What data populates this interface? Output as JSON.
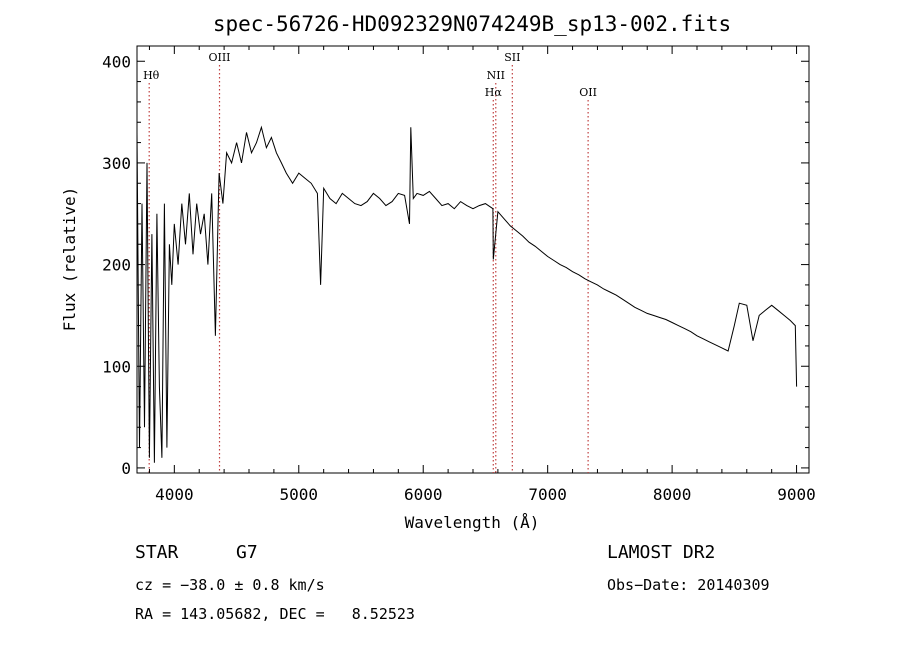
{
  "chart_data": {
    "type": "line",
    "title": "spec-56726-HD092329N074249B_sp13-002.fits",
    "xlabel": "Wavelength (Å)",
    "ylabel": "Flux (relative)",
    "xlim": [
      3700,
      9100
    ],
    "ylim": [
      -5,
      415
    ],
    "x_ticks": [
      4000,
      5000,
      6000,
      7000,
      8000,
      9000
    ],
    "y_ticks": [
      0,
      100,
      200,
      300,
      400
    ],
    "grid": false,
    "series": [
      {
        "x": [
          3700,
          3720,
          3740,
          3760,
          3780,
          3800,
          3820,
          3840,
          3860,
          3880,
          3900,
          3920,
          3940,
          3960,
          3980,
          4000,
          4030,
          4060,
          4090,
          4120,
          4150,
          4180,
          4210,
          4240,
          4270,
          4300,
          4330,
          4360,
          4390,
          4420,
          4460,
          4500,
          4540,
          4580,
          4620,
          4660,
          4700,
          4740,
          4780,
          4820,
          4860,
          4900,
          4950,
          5000,
          5050,
          5100,
          5150,
          5175,
          5200,
          5250,
          5300,
          5350,
          5400,
          5450,
          5500,
          5550,
          5600,
          5650,
          5700,
          5750,
          5800,
          5850,
          5890,
          5900,
          5920,
          5950,
          6000,
          6050,
          6100,
          6150,
          6200,
          6250,
          6300,
          6350,
          6400,
          6450,
          6500,
          6560,
          6563,
          6600,
          6650,
          6700,
          6750,
          6800,
          6850,
          6900,
          6950,
          7000,
          7050,
          7100,
          7150,
          7200,
          7250,
          7300,
          7350,
          7400,
          7450,
          7500,
          7550,
          7600,
          7650,
          7700,
          7750,
          7800,
          7850,
          7900,
          7950,
          8000,
          8050,
          8100,
          8150,
          8200,
          8250,
          8300,
          8350,
          8400,
          8450,
          8500,
          8540,
          8600,
          8650,
          8700,
          8750,
          8800,
          8850,
          8900,
          8950,
          8990,
          9000
        ],
        "y": [
          330,
          20,
          260,
          40,
          300,
          10,
          230,
          5,
          250,
          80,
          10,
          260,
          20,
          220,
          180,
          240,
          200,
          260,
          220,
          270,
          210,
          260,
          230,
          250,
          200,
          270,
          130,
          290,
          260,
          310,
          300,
          320,
          300,
          330,
          310,
          320,
          335,
          315,
          325,
          310,
          300,
          290,
          280,
          290,
          285,
          280,
          270,
          180,
          275,
          265,
          260,
          270,
          265,
          260,
          258,
          262,
          270,
          265,
          258,
          262,
          270,
          268,
          240,
          335,
          265,
          270,
          268,
          272,
          265,
          258,
          260,
          255,
          262,
          258,
          255,
          258,
          260,
          255,
          205,
          252,
          245,
          238,
          233,
          228,
          222,
          218,
          213,
          208,
          204,
          200,
          197,
          193,
          190,
          186,
          183,
          180,
          176,
          173,
          170,
          166,
          162,
          158,
          155,
          152,
          150,
          148,
          146,
          143,
          140,
          137,
          134,
          130,
          127,
          124,
          121,
          118,
          115,
          140,
          162,
          160,
          125,
          150,
          155,
          160,
          155,
          150,
          145,
          140,
          80
        ]
      }
    ],
    "line_markers": [
      {
        "label": "Hθ",
        "x": 3798,
        "row": 1
      },
      {
        "label": "OIII",
        "x": 4363,
        "row": 0
      },
      {
        "label": "NII",
        "x": 6583,
        "row": 1
      },
      {
        "label": "Hα",
        "x": 6563,
        "row": 2
      },
      {
        "label": "OII",
        "x": 7325,
        "row": 2
      },
      {
        "label": "SII",
        "x": 6716,
        "row": 0
      }
    ]
  },
  "info": {
    "object_type": "STAR",
    "subclass": "G7",
    "survey": "LAMOST DR2",
    "cz": "cz = −38.0 ± 0.8 km/s",
    "obs_date": "Obs−Date: 20140309",
    "coords": "RA = 143.05682, DEC =   8.52523"
  }
}
